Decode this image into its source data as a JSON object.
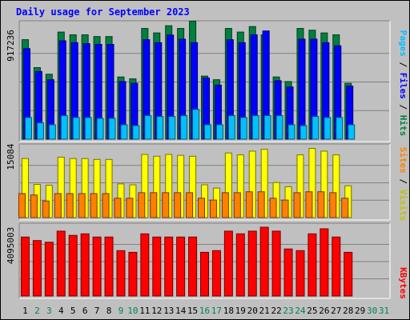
{
  "chart_data": {
    "type": "bar",
    "title": "Daily usage for September 2023",
    "days": [
      "1",
      "2",
      "3",
      "4",
      "5",
      "6",
      "7",
      "8",
      "9",
      "10",
      "11",
      "12",
      "13",
      "14",
      "15",
      "16",
      "17",
      "18",
      "19",
      "20",
      "21",
      "22",
      "23",
      "24",
      "25",
      "26",
      "27",
      "28",
      "29",
      "30",
      "31"
    ],
    "weekend_days": [
      "2",
      "3",
      "9",
      "10",
      "16",
      "17",
      "23",
      "24",
      "30",
      "31"
    ],
    "top_panel": {
      "max_label": "917236",
      "axis_labels": [
        "Pages",
        "Files",
        "Hits"
      ],
      "series": [
        {
          "name": "Hits",
          "color": "#008040",
          "values": [
            798000,
            574000,
            521000,
            859000,
            837000,
            837000,
            823000,
            823000,
            499000,
            484000,
            888000,
            852000,
            910000,
            888000,
            946000,
            506000,
            477000,
            888000,
            859000,
            903000,
            837000,
            499000,
            462000,
            888000,
            874000,
            852000,
            837000,
            448000,
            0,
            0,
            0
          ]
        },
        {
          "name": "Files",
          "color": "#0000ff",
          "values": [
            726000,
            543000,
            477000,
            789000,
            774000,
            766000,
            760000,
            760000,
            462000,
            448000,
            798000,
            774000,
            835000,
            802000,
            774000,
            491000,
            434000,
            798000,
            774000,
            837000,
            868000,
            469000,
            419000,
            802000,
            802000,
            774000,
            749000,
            426000,
            0,
            0,
            0
          ]
        },
        {
          "name": "Pages",
          "color": "#00c0ff",
          "values": [
            174000,
            131000,
            116000,
            189000,
            174000,
            174000,
            167000,
            167000,
            116000,
            109000,
            189000,
            182000,
            182000,
            189000,
            239000,
            116000,
            116000,
            189000,
            174000,
            189000,
            189000,
            189000,
            116000,
            109000,
            182000,
            174000,
            174000,
            116000,
            0,
            0,
            0
          ]
        }
      ]
    },
    "middle_panel": {
      "max_label": "15084",
      "axis_labels": [
        "Sites",
        "Visits"
      ],
      "series": [
        {
          "name": "Visits",
          "color": "#ffff00",
          "values": [
            12800,
            7200,
            7000,
            13100,
            12800,
            12800,
            12600,
            12600,
            7300,
            7100,
            13700,
            13300,
            13700,
            13500,
            13300,
            7100,
            6400,
            14000,
            13600,
            14400,
            14800,
            7600,
            6700,
            13600,
            15000,
            14400,
            13600,
            6900,
            0,
            0,
            0
          ]
        },
        {
          "name": "Sites",
          "color": "#ff8000",
          "values": [
            5200,
            4900,
            3600,
            5200,
            5200,
            5200,
            5200,
            5200,
            4200,
            4200,
            5400,
            5400,
            5400,
            5400,
            5400,
            4200,
            3800,
            5400,
            5400,
            5600,
            5600,
            4200,
            3800,
            5400,
            5600,
            5600,
            5400,
            4200,
            0,
            0,
            0
          ]
        }
      ]
    },
    "bottom_panel": {
      "max_label": "4095003",
      "axis_labels": [
        "KBytes"
      ],
      "series": [
        {
          "name": "KBytes",
          "color": "#ff0000",
          "values": [
            3510000,
            3300000,
            3200000,
            3860000,
            3610000,
            3700000,
            3510000,
            3510000,
            2700000,
            2600000,
            3700000,
            3510000,
            3510000,
            3510000,
            3510000,
            2600000,
            2700000,
            3860000,
            3700000,
            3860000,
            4095000,
            3860000,
            2800000,
            2700000,
            3700000,
            4000000,
            3510000,
            2600000,
            0,
            0,
            0
          ]
        }
      ]
    }
  }
}
